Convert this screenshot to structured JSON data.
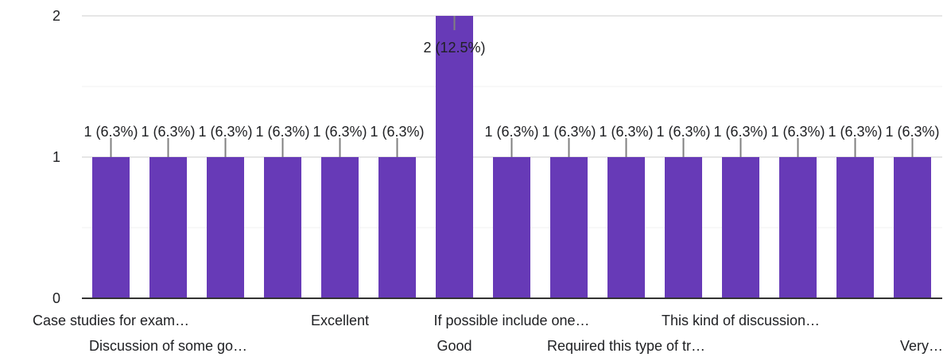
{
  "chart_data": {
    "type": "bar",
    "title": "",
    "xlabel": "",
    "ylabel": "",
    "ylim": [
      0,
      2
    ],
    "y_ticks": [
      0,
      1,
      2
    ],
    "grid": true,
    "bar_color": "#673ab7",
    "categories": [
      "Case studies for exam…",
      "Discussion of some go…",
      "",
      "",
      "Excellent",
      "",
      "Good",
      "If possible include one…",
      "",
      "Required this type of tr…",
      "",
      "This kind of discussion…",
      "",
      "",
      "Very…"
    ],
    "values": [
      1,
      1,
      1,
      1,
      1,
      1,
      2,
      1,
      1,
      1,
      1,
      1,
      1,
      1,
      1
    ],
    "data_labels": [
      "1 (6.3%)",
      "1 (6.3%)",
      "1 (6.3%)",
      "1 (6.3%)",
      "1 (6.3%)",
      "1 (6.3%)",
      "2 (12.5%)",
      "1 (6.3%)",
      "1 (6.3%)",
      "1 (6.3%)",
      "1 (6.3%)",
      "1 (6.3%)",
      "1 (6.3%)",
      "1 (6.3%)",
      "1 (6.3%)"
    ]
  }
}
